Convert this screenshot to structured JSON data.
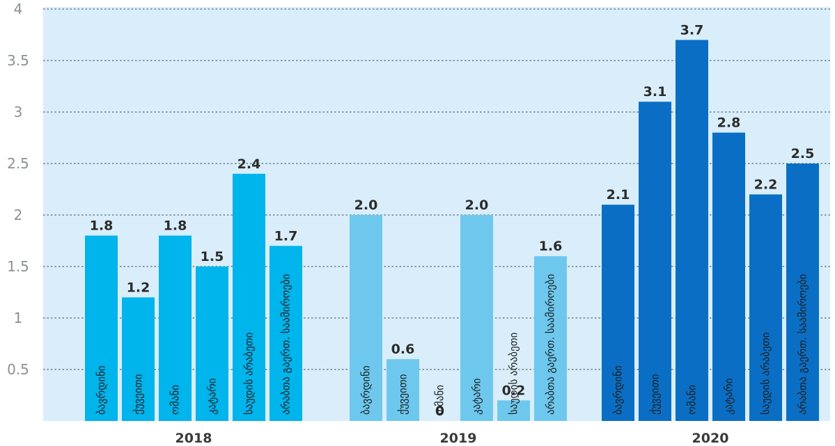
{
  "chart_data": {
    "type": "bar",
    "title": "",
    "xlabel": "",
    "ylabel": "",
    "ylim": [
      0,
      4
    ],
    "yticks": [
      "0.5",
      "1",
      "1.5",
      "2",
      "2.5",
      "3",
      "3.5",
      "4"
    ],
    "grid": true,
    "groups": [
      {
        "name": "2018",
        "color": "#00b4ec",
        "label_color": "#1c1c1c",
        "bars": [
          {
            "label": "ბავრდინი",
            "value": 1.8,
            "value_label": "1.8"
          },
          {
            "label": "ქუვეითი",
            "value": 1.2,
            "value_label": "1.2"
          },
          {
            "label": "ომანი",
            "value": 1.8,
            "value_label": "1.8"
          },
          {
            "label": "კატარი",
            "value": 1.5,
            "value_label": "1.5"
          },
          {
            "label": "საუდის არაბეთი",
            "value": 2.4,
            "value_label": "2.4"
          },
          {
            "label": "არაბთა გაერთ. საამიროები",
            "value": 1.7,
            "value_label": "1.7"
          }
        ]
      },
      {
        "name": "2019",
        "color": "#6ec8ee",
        "label_color": "#1c1c1c",
        "bars": [
          {
            "label": "ბავრდინი",
            "value": 2.0,
            "value_label": "2.0"
          },
          {
            "label": "ქუვეითი",
            "value": 0.6,
            "value_label": "0.6"
          },
          {
            "label": "ომანი",
            "value": 0,
            "value_label": "0"
          },
          {
            "label": "კატარი",
            "value": 2.0,
            "value_label": "2.0"
          },
          {
            "label": "საუდის არაბეთი",
            "value": 0.2,
            "value_label": "0.2"
          },
          {
            "label": "არაბთა გაერთ. საამიროები",
            "value": 1.6,
            "value_label": "1.6"
          }
        ]
      },
      {
        "name": "2020",
        "color": "#0a6fc4",
        "label_color": "#ffffff",
        "bars": [
          {
            "label": "ბავრდინი",
            "value": 2.1,
            "value_label": "2.1"
          },
          {
            "label": "ქუვეითი",
            "value": 3.1,
            "value_label": "3.1"
          },
          {
            "label": "ომანი",
            "value": 3.7,
            "value_label": "3.7"
          },
          {
            "label": "კატარი",
            "value": 2.8,
            "value_label": "2.8"
          },
          {
            "label": "საუდის არაბეთი",
            "value": 2.2,
            "value_label": "2.2"
          },
          {
            "label": "არაბთა გაერთ. საამიროები",
            "value": 2.5,
            "value_label": "2.5"
          }
        ]
      }
    ],
    "colors": {
      "background": "#d9eefa",
      "grid": "#6f7e88"
    }
  }
}
